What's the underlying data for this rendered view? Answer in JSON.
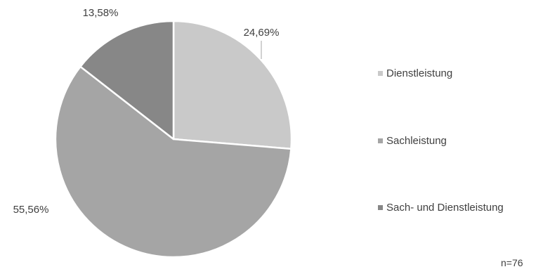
{
  "chart_data": {
    "type": "pie",
    "categories": [
      "Dienstleistung",
      "Sachleistung",
      "Sach- und Dienstleistung"
    ],
    "values": [
      24.69,
      55.56,
      13.58
    ],
    "data_labels": [
      "24,69%",
      "55,56%",
      "13,58%"
    ],
    "colors": [
      "#c9c9c9",
      "#a5a5a5",
      "#878787"
    ],
    "legend_position": "right",
    "note": "n=76"
  }
}
